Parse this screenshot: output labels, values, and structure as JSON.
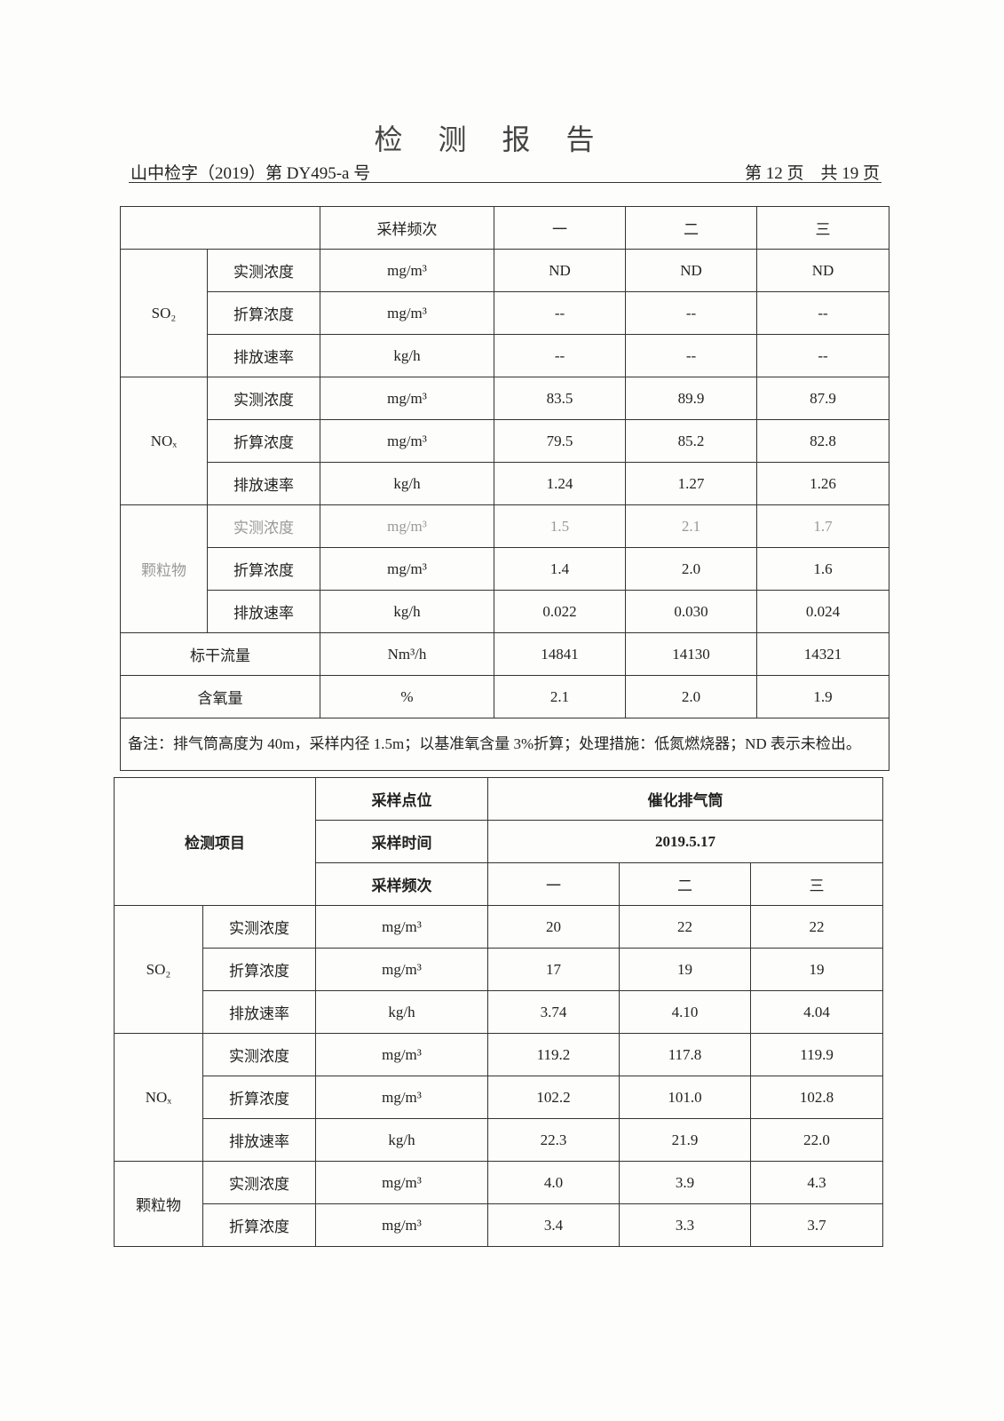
{
  "header": {
    "title": "检测报告",
    "doc_number": "山中检字（2019）第 DY495-a 号",
    "page_info": "第 12 页　共 19 页"
  },
  "table1": {
    "freq_label": "采样频次",
    "runs": [
      "一",
      "二",
      "三"
    ],
    "groups": [
      {
        "name": "SO₂",
        "rows": [
          [
            "实测浓度",
            "mg/m³",
            "ND",
            "ND",
            "ND"
          ],
          [
            "折算浓度",
            "mg/m³",
            "--",
            "--",
            "--"
          ],
          [
            "排放速率",
            "kg/h",
            "--",
            "--",
            "--"
          ]
        ]
      },
      {
        "name": "NOₓ",
        "rows": [
          [
            "实测浓度",
            "mg/m³",
            "83.5",
            "89.9",
            "87.9"
          ],
          [
            "折算浓度",
            "mg/m³",
            "79.5",
            "85.2",
            "82.8"
          ],
          [
            "排放速率",
            "kg/h",
            "1.24",
            "1.27",
            "1.26"
          ]
        ]
      },
      {
        "name": "颗粒物",
        "rows": [
          [
            "实测浓度",
            "mg/m³",
            "1.5",
            "2.1",
            "1.7"
          ],
          [
            "折算浓度",
            "mg/m³",
            "1.4",
            "2.0",
            "1.6"
          ],
          [
            "排放速率",
            "kg/h",
            "0.022",
            "0.030",
            "0.024"
          ]
        ]
      }
    ],
    "singles": [
      [
        "标干流量",
        "Nm³/h",
        "14841",
        "14130",
        "14321"
      ],
      [
        "含氧量",
        "%",
        "2.1",
        "2.0",
        "1.9"
      ]
    ],
    "note": "备注：排气筒高度为 40m，采样内径 1.5m；以基准氧含量 3%折算；处理措施：低氮燃烧器；ND 表示未检出。"
  },
  "table2": {
    "item_label": "检测项目",
    "point_label": "采样点位",
    "point_value": "催化排气筒",
    "time_label": "采样时间",
    "time_value": "2019.5.17",
    "freq_label": "采样频次",
    "runs": [
      "一",
      "二",
      "三"
    ],
    "groups": [
      {
        "name": "SO₂",
        "rows": [
          [
            "实测浓度",
            "mg/m³",
            "20",
            "22",
            "22"
          ],
          [
            "折算浓度",
            "mg/m³",
            "17",
            "19",
            "19"
          ],
          [
            "排放速率",
            "kg/h",
            "3.74",
            "4.10",
            "4.04"
          ]
        ]
      },
      {
        "name": "NOₓ",
        "rows": [
          [
            "实测浓度",
            "mg/m³",
            "119.2",
            "117.8",
            "119.9"
          ],
          [
            "折算浓度",
            "mg/m³",
            "102.2",
            "101.0",
            "102.8"
          ],
          [
            "排放速率",
            "kg/h",
            "22.3",
            "21.9",
            "22.0"
          ]
        ]
      },
      {
        "name": "颗粒物",
        "rows": [
          [
            "实测浓度",
            "mg/m³",
            "4.0",
            "3.9",
            "4.3"
          ],
          [
            "折算浓度",
            "mg/m³",
            "3.4",
            "3.3",
            "3.7"
          ]
        ]
      }
    ]
  }
}
